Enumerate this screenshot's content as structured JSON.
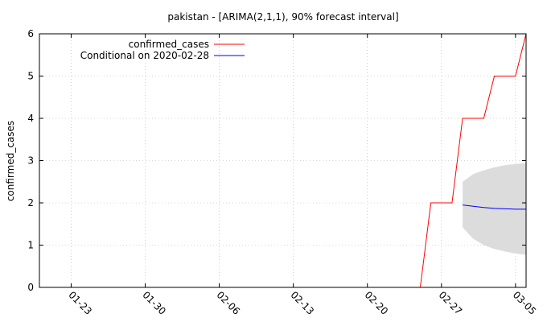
{
  "chart_data": {
    "type": "line",
    "title": "pakistan -  [ARIMA(2,1,1), 90% forecast interval]",
    "xlabel": "",
    "ylabel": "confirmed_cases",
    "x_range": [
      "2020-01-20",
      "2020-03-06"
    ],
    "ylim": [
      0,
      6
    ],
    "y_ticks": [
      0,
      1,
      2,
      3,
      4,
      5,
      6
    ],
    "x_ticks": [
      {
        "date": "2020-01-23",
        "label": "01-23"
      },
      {
        "date": "2020-01-30",
        "label": "01-30"
      },
      {
        "date": "2020-02-06",
        "label": "02-06"
      },
      {
        "date": "2020-02-13",
        "label": "02-13"
      },
      {
        "date": "2020-02-20",
        "label": "02-20"
      },
      {
        "date": "2020-02-27",
        "label": "02-27"
      },
      {
        "date": "2020-03-05",
        "label": "03-05"
      }
    ],
    "grid": true,
    "legend_position": "top-left",
    "series": [
      {
        "name": "confirmed_cases",
        "color": "#ff0000",
        "points": [
          {
            "x": "2020-02-25",
            "y": 0
          },
          {
            "x": "2020-02-26",
            "y": 2
          },
          {
            "x": "2020-02-28",
            "y": 2
          },
          {
            "x": "2020-02-29",
            "y": 4
          },
          {
            "x": "2020-03-02",
            "y": 4
          },
          {
            "x": "2020-03-03",
            "y": 5
          },
          {
            "x": "2020-03-05",
            "y": 5
          },
          {
            "x": "2020-03-06",
            "y": 6
          }
        ]
      },
      {
        "name": "Conditional on 2020-02-28",
        "color": "#0000ff",
        "points": [
          {
            "x": "2020-02-29",
            "y": 1.95
          },
          {
            "x": "2020-03-01",
            "y": 1.92
          },
          {
            "x": "2020-03-02",
            "y": 1.89
          },
          {
            "x": "2020-03-03",
            "y": 1.87
          },
          {
            "x": "2020-03-04",
            "y": 1.86
          },
          {
            "x": "2020-03-05",
            "y": 1.85
          },
          {
            "x": "2020-03-06",
            "y": 1.85
          }
        ]
      }
    ],
    "forecast_interval": {
      "fill_color": "#dcdcdc",
      "points": [
        {
          "x": "2020-02-29",
          "low": 1.42,
          "high": 2.5
        },
        {
          "x": "2020-03-01",
          "low": 1.15,
          "high": 2.68
        },
        {
          "x": "2020-03-02",
          "low": 1.0,
          "high": 2.77
        },
        {
          "x": "2020-03-03",
          "low": 0.91,
          "high": 2.84
        },
        {
          "x": "2020-03-04",
          "low": 0.85,
          "high": 2.89
        },
        {
          "x": "2020-03-05",
          "low": 0.8,
          "high": 2.92
        },
        {
          "x": "2020-03-06",
          "low": 0.77,
          "high": 2.94
        }
      ]
    }
  }
}
